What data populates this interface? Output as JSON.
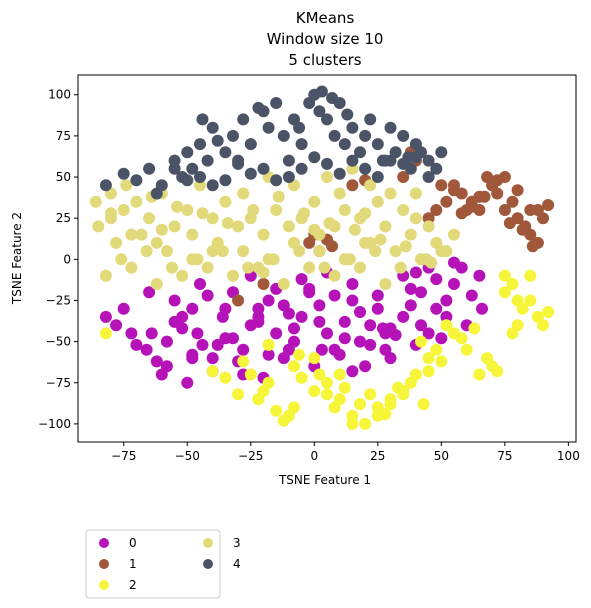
{
  "chart_data": {
    "type": "scatter",
    "title_lines": [
      "KMeans",
      "Window size 10",
      "5 clusters"
    ],
    "xlabel": "TSNE Feature 1",
    "ylabel": "TSNE Feature 2",
    "xlim": [
      -93,
      103
    ],
    "ylim": [
      -111,
      112
    ],
    "xticks": [
      -75,
      -50,
      -25,
      0,
      25,
      50,
      75,
      100
    ],
    "yticks": [
      -100,
      -75,
      -50,
      -25,
      0,
      25,
      50,
      75,
      100
    ],
    "xtick_labels": [
      "−75",
      "−50",
      "−25",
      "0",
      "25",
      "50",
      "75",
      "100"
    ],
    "ytick_labels": [
      "−100",
      "−75",
      "−50",
      "−25",
      "0",
      "25",
      "50",
      "75",
      "100"
    ],
    "legend": {
      "position": "below-left",
      "columns": 2
    },
    "series": [
      {
        "name": "0",
        "color": "#b512b8",
        "x": [
          -82,
          -78,
          -75,
          -72,
          -66,
          -62,
          -58,
          -55,
          -52,
          -48,
          -46,
          -44,
          -40,
          -36,
          -32,
          -28,
          -25,
          -22,
          -18,
          -15,
          -12,
          -8,
          -5,
          -2,
          2,
          5,
          8,
          12,
          15,
          18,
          22,
          25,
          28,
          30,
          35,
          38,
          42,
          45,
          48,
          52,
          55,
          60,
          62,
          65,
          66,
          -60,
          -50,
          -40,
          -30,
          -20,
          -10,
          0,
          10,
          20,
          30,
          40,
          50,
          -65,
          -55,
          -45,
          -35,
          -25,
          -15,
          -5,
          5,
          15,
          25,
          35,
          45,
          -70,
          -48,
          -38,
          -28,
          -18,
          -8,
          2,
          12,
          22,
          32,
          42,
          52,
          -64,
          -52,
          -42,
          -32,
          -22,
          -12,
          -2,
          8,
          18,
          28,
          38,
          48,
          58,
          -58,
          -48,
          -35,
          -22,
          -10,
          3,
          15,
          27,
          40,
          55
        ],
        "y": [
          -35,
          -40,
          -30,
          -45,
          -55,
          -62,
          -50,
          -38,
          -42,
          -30,
          -45,
          -52,
          -60,
          -35,
          -48,
          -55,
          -40,
          -30,
          -25,
          -45,
          -60,
          -50,
          -35,
          -20,
          -28,
          -45,
          -55,
          -38,
          -25,
          -50,
          -40,
          -30,
          -55,
          -42,
          -35,
          -28,
          -20,
          -45,
          -30,
          -25,
          -15,
          -40,
          -22,
          -10,
          -30,
          -70,
          -75,
          -68,
          -62,
          -72,
          -55,
          -65,
          -58,
          -65,
          -60,
          -52,
          -48,
          -20,
          -25,
          -15,
          -30,
          -10,
          -18,
          -12,
          -8,
          -15,
          -22,
          -10,
          -5,
          -52,
          -60,
          -52,
          -70,
          -58,
          -42,
          -38,
          -48,
          -52,
          -46,
          -40,
          -35,
          -45,
          -35,
          -22,
          -20,
          -35,
          -28,
          -18,
          -22,
          -32,
          -45,
          -18,
          -12,
          -5,
          -65,
          -58,
          -48,
          -38,
          -33,
          -55,
          -68,
          -42,
          -8,
          -2
        ]
      },
      {
        "name": "1",
        "color": "#a0573a",
        "x": [
          55,
          58,
          62,
          65,
          68,
          70,
          72,
          75,
          78,
          80,
          83,
          85,
          88,
          90,
          92,
          60,
          65,
          70,
          75,
          80,
          85,
          52,
          48,
          45,
          35,
          38,
          40,
          -2,
          0,
          2,
          5,
          7,
          15,
          20,
          -30,
          -20,
          50,
          55,
          58,
          62,
          67,
          72,
          77,
          82,
          86,
          88
        ],
        "y": [
          45,
          40,
          35,
          30,
          50,
          45,
          40,
          30,
          35,
          25,
          20,
          15,
          30,
          25,
          33,
          30,
          38,
          45,
          50,
          42,
          30,
          35,
          30,
          25,
          50,
          65,
          60,
          10,
          15,
          5,
          12,
          8,
          45,
          48,
          -25,
          -15,
          45,
          42,
          28,
          32,
          38,
          48,
          22,
          18,
          8,
          10
        ]
      },
      {
        "name": "2",
        "color": "#f7f53a",
        "x": [
          75,
          78,
          80,
          82,
          85,
          88,
          90,
          92,
          78,
          80,
          70,
          65,
          68,
          60,
          55,
          52,
          48,
          45,
          42,
          40,
          35,
          30,
          25,
          22,
          18,
          15,
          12,
          10,
          8,
          5,
          2,
          0,
          -5,
          -8,
          -10,
          -15,
          -18,
          -20,
          -25,
          -30,
          -35,
          -40,
          20,
          25,
          30,
          35,
          38,
          45,
          50,
          -12,
          -8,
          -6,
          0,
          10,
          15,
          -22,
          -28,
          -18,
          5,
          28,
          33,
          43,
          58,
          63,
          72,
          -82,
          75,
          85
        ],
        "y": [
          -20,
          -15,
          -25,
          -30,
          -10,
          -35,
          -40,
          -32,
          -45,
          -40,
          -65,
          -70,
          -60,
          -55,
          -45,
          -40,
          -55,
          -60,
          -50,
          -70,
          -80,
          -85,
          -90,
          -82,
          -88,
          -95,
          -78,
          -85,
          -90,
          -75,
          -70,
          -80,
          -72,
          -65,
          -95,
          -92,
          -75,
          -80,
          -70,
          -82,
          -72,
          -68,
          -100,
          -95,
          -88,
          -82,
          -75,
          -68,
          -62,
          -98,
          -90,
          -58,
          -60,
          -70,
          -100,
          -85,
          -62,
          -52,
          -82,
          -94,
          -78,
          -88,
          -48,
          -42,
          -68,
          -45,
          -10,
          -25
        ]
      },
      {
        "name": "3",
        "color": "#e2d97a",
        "x": [
          -85,
          -80,
          -75,
          -72,
          -70,
          -65,
          -62,
          -60,
          -55,
          -50,
          -48,
          -45,
          -40,
          -38,
          -35,
          -30,
          -28,
          -25,
          -20,
          -18,
          -15,
          -10,
          -8,
          -5,
          0,
          2,
          5,
          8,
          10,
          12,
          15,
          18,
          20,
          22,
          25,
          28,
          30,
          35,
          38,
          40,
          45,
          48,
          50,
          55,
          -78,
          -68,
          -58,
          -48,
          -38,
          -28,
          -18,
          -8,
          2,
          12,
          22,
          32,
          42,
          52,
          -82,
          -72,
          -62,
          -52,
          -42,
          -32,
          -22,
          -12,
          -2,
          8,
          18,
          28,
          -76,
          -66,
          -56,
          -46,
          -36,
          -26,
          -16,
          -6,
          4,
          14,
          24,
          34,
          44,
          -86,
          -80,
          -74,
          -64,
          -54,
          -44,
          -34,
          -24,
          -14,
          -4,
          6,
          16,
          26,
          36,
          46,
          -80,
          -60,
          -40,
          -20,
          0,
          20,
          40
        ],
        "y": [
          20,
          25,
          30,
          15,
          35,
          25,
          10,
          40,
          20,
          30,
          15,
          45,
          25,
          10,
          35,
          20,
          40,
          25,
          15,
          50,
          30,
          20,
          45,
          25,
          35,
          15,
          50,
          20,
          40,
          30,
          55,
          25,
          10,
          45,
          35,
          20,
          40,
          30,
          15,
          25,
          20,
          10,
          5,
          15,
          10,
          15,
          5,
          0,
          10,
          5,
          0,
          10,
          5,
          0,
          10,
          5,
          0,
          5,
          -10,
          -5,
          -15,
          -10,
          -5,
          -10,
          -5,
          -15,
          -5,
          -10,
          -5,
          -15,
          0,
          5,
          -5,
          0,
          5,
          -5,
          0,
          5,
          -5,
          0,
          5,
          -5,
          0,
          35,
          40,
          45,
          38,
          32,
          28,
          22,
          30,
          38,
          28,
          22,
          18,
          12,
          8,
          -2,
          28,
          18,
          5,
          -8,
          18,
          28,
          40
        ]
      },
      {
        "name": "4",
        "color": "#4b5467",
        "x": [
          -82,
          -75,
          -70,
          -65,
          -62,
          -60,
          -55,
          -52,
          -50,
          -48,
          -45,
          -42,
          -40,
          -38,
          -35,
          -32,
          -30,
          -28,
          -25,
          -20,
          -18,
          -15,
          -12,
          -10,
          -8,
          -5,
          -2,
          0,
          2,
          5,
          8,
          10,
          12,
          15,
          18,
          20,
          22,
          25,
          28,
          30,
          32,
          35,
          38,
          40,
          42,
          45,
          48,
          50,
          -55,
          -50,
          -45,
          -40,
          -35,
          -30,
          -25,
          -20,
          -15,
          -10,
          -5,
          0,
          5,
          10,
          15,
          20,
          25,
          30,
          35,
          40,
          45,
          -44,
          -22,
          -6,
          3,
          7,
          13,
          27,
          37
        ],
        "y": [
          45,
          52,
          48,
          55,
          40,
          45,
          60,
          50,
          65,
          55,
          70,
          60,
          80,
          72,
          65,
          75,
          58,
          85,
          70,
          90,
          80,
          95,
          75,
          60,
          85,
          70,
          95,
          100,
          90,
          85,
          75,
          95,
          70,
          80,
          65,
          75,
          85,
          70,
          60,
          80,
          65,
          75,
          55,
          70,
          65,
          60,
          55,
          65,
          55,
          48,
          50,
          45,
          48,
          60,
          52,
          55,
          48,
          50,
          55,
          62,
          58,
          52,
          60,
          55,
          50,
          60,
          58,
          62,
          50,
          85,
          92,
          80,
          102,
          98,
          88,
          60,
          62
        ]
      }
    ]
  }
}
